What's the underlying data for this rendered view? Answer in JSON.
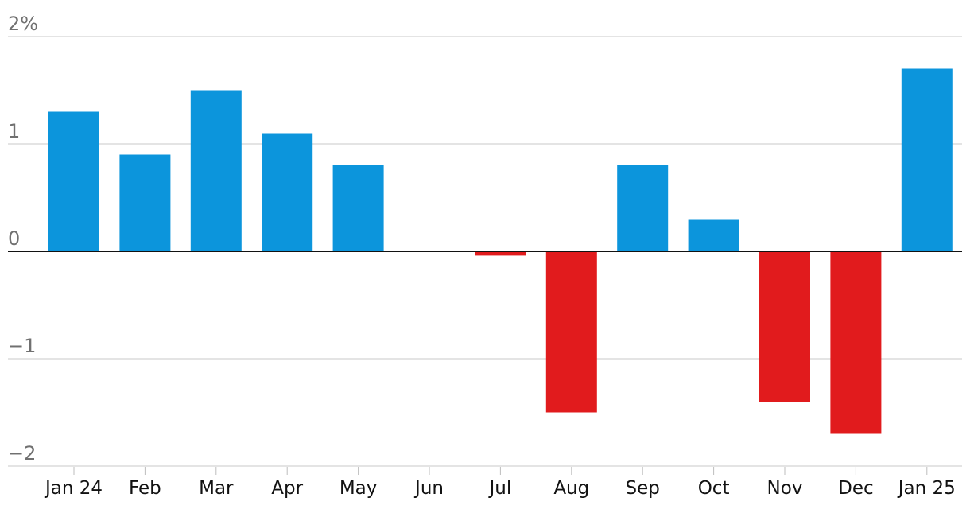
{
  "chart_data": {
    "type": "bar",
    "categories": [
      "Jan 24",
      "Feb",
      "Mar",
      "Apr",
      "May",
      "Jun",
      "Jul",
      "Aug",
      "Sep",
      "Oct",
      "Nov",
      "Dec",
      "Jan 25"
    ],
    "values": [
      1.3,
      0.9,
      1.5,
      1.1,
      0.8,
      0.0,
      -0.04,
      -1.5,
      0.8,
      0.3,
      -1.4,
      -1.7,
      1.7
    ],
    "ylim": [
      -2,
      2
    ],
    "y_ticks": [
      {
        "value": 2,
        "label": "2%"
      },
      {
        "value": 1,
        "label": "1"
      },
      {
        "value": 0,
        "label": "0"
      },
      {
        "value": -1,
        "label": "−1"
      },
      {
        "value": -2,
        "label": "−2"
      }
    ],
    "grid": true,
    "colors": {
      "positive": "#0c95dc",
      "negative": "#e11b1d"
    }
  }
}
